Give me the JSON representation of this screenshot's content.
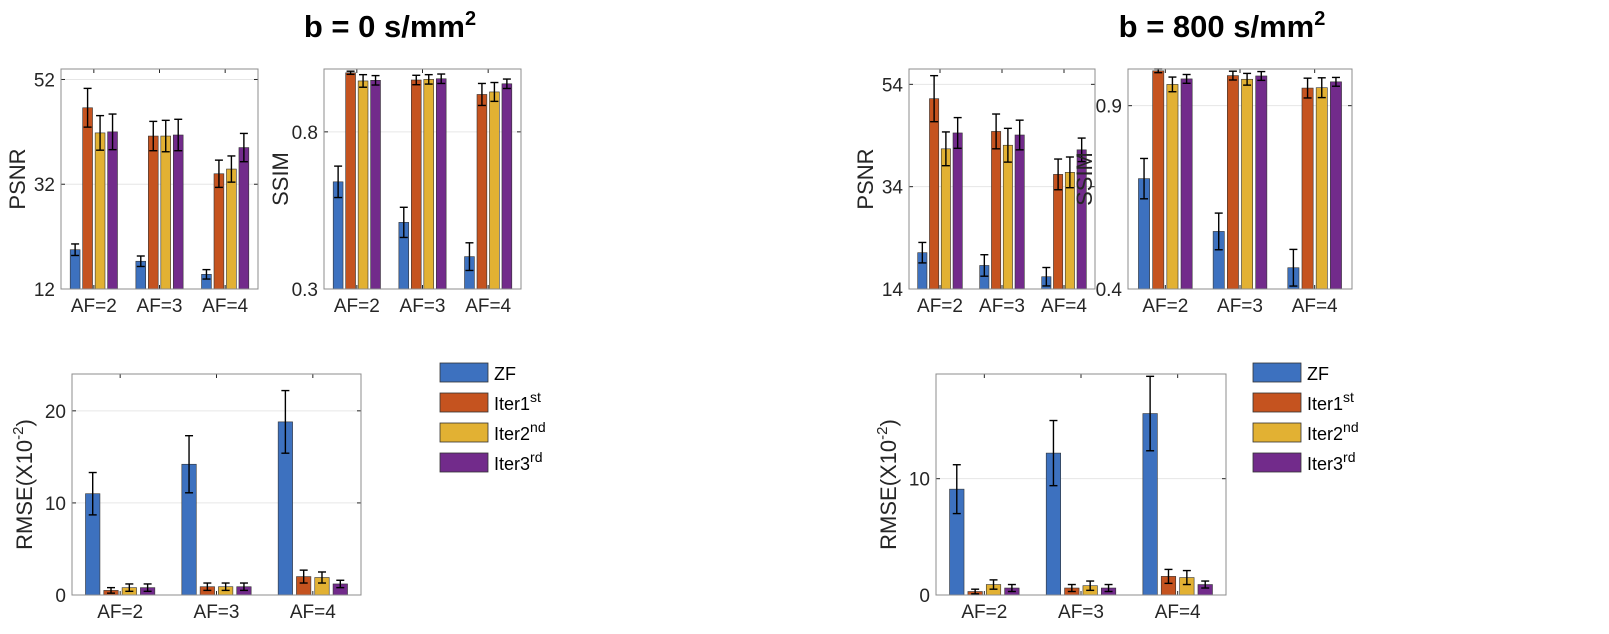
{
  "titles": [
    {
      "text": "b = 0 s/mm",
      "sup": "2"
    },
    {
      "text": "b = 800 s/mm",
      "sup": "2"
    }
  ],
  "colors": {
    "ZF": "#3d71bf",
    "Iter1st": "#c5531f",
    "Iter2nd": "#e2b133",
    "Iter3rd": "#722b8b"
  },
  "legend": [
    {
      "label": "ZF",
      "sup": "",
      "color": "#3d71bf"
    },
    {
      "label": "Iter1",
      "sup": "st",
      "color": "#c5531f"
    },
    {
      "label": "Iter2",
      "sup": "nd",
      "color": "#e2b133"
    },
    {
      "label": "Iter3",
      "sup": "rd",
      "color": "#722b8b"
    }
  ],
  "chart_data": [
    {
      "type": "bar",
      "id": "b0-psnr",
      "panel": "b = 0 s/mm2",
      "ylabel": "PSNR",
      "ylim": [
        12,
        54
      ],
      "yticks": [
        12,
        32,
        52
      ],
      "grid": true,
      "categories": [
        "AF=2",
        "AF=3",
        "AF=4"
      ],
      "series": [
        {
          "name": "ZF",
          "values": [
            19.5,
            17.3,
            14.8
          ],
          "errors": [
            1.1,
            1.0,
            0.9
          ]
        },
        {
          "name": "Iter1st",
          "values": [
            46.6,
            41.2,
            34.0
          ],
          "errors": [
            3.7,
            2.8,
            2.6
          ]
        },
        {
          "name": "Iter2nd",
          "values": [
            41.8,
            41.2,
            34.9
          ],
          "errors": [
            3.3,
            3.0,
            2.5
          ]
        },
        {
          "name": "Iter3rd",
          "values": [
            42.0,
            41.4,
            39.0
          ],
          "errors": [
            3.4,
            3.0,
            2.7
          ]
        }
      ]
    },
    {
      "type": "bar",
      "id": "b0-ssim",
      "panel": "b = 0 s/mm2",
      "ylabel": "SSIM",
      "ylim": [
        0.3,
        1.0
      ],
      "yticks": [
        0.3,
        0.8
      ],
      "grid": true,
      "categories": [
        "AF=2",
        "AF=3",
        "AF=4"
      ],
      "series": [
        {
          "name": "ZF",
          "values": [
            0.641,
            0.512,
            0.403
          ],
          "errors": [
            0.05,
            0.048,
            0.044
          ]
        },
        {
          "name": "Iter1st",
          "values": [
            0.988,
            0.965,
            0.919
          ],
          "errors": [
            0.005,
            0.015,
            0.035
          ]
        },
        {
          "name": "Iter2nd",
          "values": [
            0.962,
            0.967,
            0.927
          ],
          "errors": [
            0.02,
            0.015,
            0.03
          ]
        },
        {
          "name": "Iter3rd",
          "values": [
            0.964,
            0.969,
            0.953
          ],
          "errors": [
            0.015,
            0.015,
            0.015
          ]
        }
      ]
    },
    {
      "type": "bar",
      "id": "b0-rmse",
      "panel": "b = 0 s/mm2",
      "ylabel": "RMSE(X10",
      "ylabel_sup": "-2",
      "ylabel_end": ")",
      "ylim": [
        0,
        24
      ],
      "yticks": [
        0,
        10,
        20
      ],
      "grid": true,
      "categories": [
        "AF=2",
        "AF=3",
        "AF=4"
      ],
      "series": [
        {
          "name": "ZF",
          "values": [
            11.0,
            14.2,
            18.8
          ],
          "errors": [
            2.3,
            3.1,
            3.4
          ]
        },
        {
          "name": "Iter1st",
          "values": [
            0.5,
            0.9,
            2.0
          ],
          "errors": [
            0.3,
            0.4,
            0.7
          ]
        },
        {
          "name": "Iter2nd",
          "values": [
            0.8,
            0.9,
            1.9
          ],
          "errors": [
            0.4,
            0.4,
            0.6
          ]
        },
        {
          "name": "Iter3rd",
          "values": [
            0.8,
            0.9,
            1.2
          ],
          "errors": [
            0.4,
            0.4,
            0.4
          ]
        }
      ]
    },
    {
      "type": "bar",
      "id": "b800-psnr",
      "panel": "b = 800 s/mm2",
      "ylabel": "PSNR",
      "ylim": [
        14,
        57
      ],
      "yticks": [
        14,
        34,
        54
      ],
      "grid": true,
      "categories": [
        "AF=2",
        "AF=3",
        "AF=4"
      ],
      "series": [
        {
          "name": "ZF",
          "values": [
            21.1,
            18.6,
            16.4
          ],
          "errors": [
            2.0,
            2.1,
            1.8
          ]
        },
        {
          "name": "Iter1st",
          "values": [
            51.2,
            44.8,
            36.4
          ],
          "errors": [
            4.5,
            3.4,
            3.0
          ]
        },
        {
          "name": "Iter2nd",
          "values": [
            41.4,
            42.1,
            36.8
          ],
          "errors": [
            3.3,
            3.3,
            3.0
          ]
        },
        {
          "name": "Iter3rd",
          "values": [
            44.5,
            44.1,
            41.2
          ],
          "errors": [
            3.0,
            2.9,
            2.3
          ]
        }
      ]
    },
    {
      "type": "bar",
      "id": "b800-ssim",
      "panel": "b = 800 s/mm2",
      "ylabel": "SSIM",
      "ylim": [
        0.4,
        1.0
      ],
      "yticks": [
        0.4,
        0.9
      ],
      "grid": true,
      "categories": [
        "AF=2",
        "AF=3",
        "AF=4"
      ],
      "series": [
        {
          "name": "ZF",
          "values": [
            0.701,
            0.557,
            0.458
          ],
          "errors": [
            0.055,
            0.05,
            0.05
          ]
        },
        {
          "name": "Iter1st",
          "values": [
            0.995,
            0.982,
            0.948
          ],
          "errors": [
            0.005,
            0.012,
            0.027
          ]
        },
        {
          "name": "Iter2nd",
          "values": [
            0.958,
            0.972,
            0.949
          ],
          "errors": [
            0.02,
            0.016,
            0.027
          ]
        },
        {
          "name": "Iter3rd",
          "values": [
            0.973,
            0.981,
            0.965
          ],
          "errors": [
            0.012,
            0.012,
            0.012
          ]
        }
      ]
    },
    {
      "type": "bar",
      "id": "b800-rmse",
      "panel": "b = 800 s/mm2",
      "ylabel": "RMSE(X10",
      "ylabel_sup": "-2",
      "ylabel_end": ")",
      "ylim": [
        0,
        19
      ],
      "yticks": [
        0,
        10
      ],
      "grid": true,
      "categories": [
        "AF=2",
        "AF=3",
        "AF=4"
      ],
      "series": [
        {
          "name": "ZF",
          "values": [
            9.1,
            12.2,
            15.6
          ],
          "errors": [
            2.1,
            2.8,
            3.2
          ]
        },
        {
          "name": "Iter1st",
          "values": [
            0.3,
            0.6,
            1.6
          ],
          "errors": [
            0.2,
            0.3,
            0.6
          ]
        },
        {
          "name": "Iter2nd",
          "values": [
            0.9,
            0.8,
            1.5
          ],
          "errors": [
            0.4,
            0.4,
            0.6
          ]
        },
        {
          "name": "Iter3rd",
          "values": [
            0.6,
            0.6,
            0.9
          ],
          "errors": [
            0.3,
            0.3,
            0.3
          ]
        }
      ]
    }
  ]
}
